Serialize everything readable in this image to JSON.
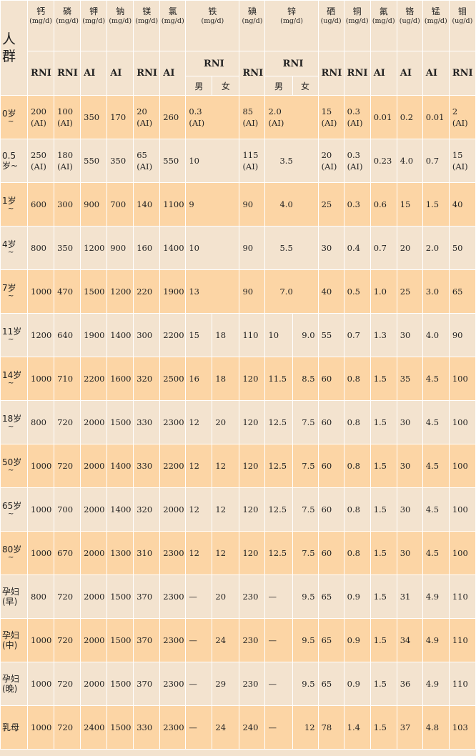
{
  "header": {
    "crowd_label": "人\n群",
    "nutrients": [
      {
        "name": "钙",
        "unit": "(mg/d)",
        "type": "RNI"
      },
      {
        "name": "磷",
        "unit": "(mg/d)",
        "type": "RNI"
      },
      {
        "name": "钾",
        "unit": "(mg/d)",
        "type": "AI"
      },
      {
        "name": "钠",
        "unit": "(mg/d)",
        "type": "AI"
      },
      {
        "name": "镁",
        "unit": "(mg/d)",
        "type": "RNI"
      },
      {
        "name": "氯",
        "unit": "(mg/d)",
        "type": "AI"
      },
      {
        "name": "铁",
        "unit": "(mg/d)",
        "type": "RNI"
      },
      {
        "name": "碘",
        "unit": "(ng/d)",
        "type": "RNI"
      },
      {
        "name": "锌",
        "unit": "(mg/d)",
        "type": "RNI"
      },
      {
        "name": "硒",
        "unit": "(ug/d)",
        "type": "RNI"
      },
      {
        "name": "铜",
        "unit": "(mg/d)",
        "type": "RNI"
      },
      {
        "name": "氟",
        "unit": "(mg/d)",
        "type": "AI"
      },
      {
        "name": "铬",
        "unit": "(ug/d)",
        "type": "AI"
      },
      {
        "name": "锰",
        "unit": "(mg/d)",
        "type": "AI"
      },
      {
        "name": "钼",
        "unit": "(ug/d)",
        "type": "RNI"
      }
    ],
    "male": "男",
    "female": "女"
  },
  "rows": [
    {
      "group": "0岁",
      "tilde": "~",
      "ca": "200\n(AI)",
      "p": "100\n(AI)",
      "k": "350",
      "na": "170",
      "mg": "20\n(AI)",
      "cl": "260",
      "fe": "0.3\n(AI)",
      "i": "85\n(AI)",
      "zn": "2.0\n(AI)",
      "se": "15\n(AI)",
      "cu": "0.3\n(AI)",
      "f": "0.01",
      "cr": "0.2",
      "mn": "0.01",
      "mo": "2\n(AI)"
    },
    {
      "group": "0.5\n岁~",
      "tilde": "",
      "ca": "250\n(AI)",
      "p": "180\n(AI)",
      "k": "550",
      "na": "350",
      "mg": "65\n(AI)",
      "cl": "550",
      "fe": "10",
      "i": "115\n(AI)",
      "zn": "3.5",
      "se": "20\n(AI)",
      "cu": "0.3\n(AI)",
      "f": "0.23",
      "cr": "4.0",
      "mn": "0.7",
      "mo": "15\n(AI)"
    },
    {
      "group": "1岁",
      "tilde": "~",
      "ca": "600",
      "p": "300",
      "k": "900",
      "na": "700",
      "mg": "140",
      "cl": "1100",
      "fe": "9",
      "i": "90",
      "zn": "4.0",
      "se": "25",
      "cu": "0.3",
      "f": "0.6",
      "cr": "15",
      "mn": "1.5",
      "mo": "40"
    },
    {
      "group": "4岁",
      "tilde": "~",
      "ca": "800",
      "p": "350",
      "k": "1200",
      "na": "900",
      "mg": "160",
      "cl": "1400",
      "fe": "10",
      "i": "90",
      "zn": "5.5",
      "se": "30",
      "cu": "0.4",
      "f": "0.7",
      "cr": "20",
      "mn": "2.0",
      "mo": "50"
    },
    {
      "group": "7岁",
      "tilde": "~",
      "ca": "1000",
      "p": "470",
      "k": "1500",
      "na": "1200",
      "mg": "220",
      "cl": "1900",
      "fe": "13",
      "i": "90",
      "zn": "7.0",
      "se": "40",
      "cu": "0.5",
      "f": "1.0",
      "cr": "25",
      "mn": "3.0",
      "mo": "65"
    },
    {
      "group": "11岁",
      "tilde": "~",
      "ca": "1200",
      "p": "640",
      "k": "1900",
      "na": "1400",
      "mg": "300",
      "cl": "2200",
      "fe_m": "15",
      "fe_f": "18",
      "i": "110",
      "zn_m": "10",
      "zn_f": "9.0",
      "se": "55",
      "cu": "0.7",
      "f": "1.3",
      "cr": "30",
      "mn": "4.0",
      "mo": "90"
    },
    {
      "group": "14岁",
      "tilde": "~",
      "ca": "1000",
      "p": "710",
      "k": "2200",
      "na": "1600",
      "mg": "320",
      "cl": "2500",
      "fe_m": "16",
      "fe_f": "18",
      "i": "120",
      "zn_m": "11.5",
      "zn_f": "8.5",
      "se": "60",
      "cu": "0.8",
      "f": "1.5",
      "cr": "35",
      "mn": "4.5",
      "mo": "100"
    },
    {
      "group": "18岁",
      "tilde": "~",
      "ca": "800",
      "p": "720",
      "k": "2000",
      "na": "1500",
      "mg": "330",
      "cl": "2300",
      "fe_m": "12",
      "fe_f": "20",
      "i": "120",
      "zn_m": "12.5",
      "zn_f": "7.5",
      "se": "60",
      "cu": "0.8",
      "f": "1.5",
      "cr": "30",
      "mn": "4.5",
      "mo": "100"
    },
    {
      "group": "50岁",
      "tilde": "~",
      "ca": "1000",
      "p": "720",
      "k": "2000",
      "na": "1400",
      "mg": "330",
      "cl": "2200",
      "fe_m": "12",
      "fe_f": "12",
      "i": "120",
      "zn_m": "12.5",
      "zn_f": "7.5",
      "se": "60",
      "cu": "0.8",
      "f": "1.5",
      "cr": "30",
      "mn": "4.5",
      "mo": "100"
    },
    {
      "group": "65岁",
      "tilde": "~",
      "ca": "1000",
      "p": "700",
      "k": "2000",
      "na": "1400",
      "mg": "320",
      "cl": "2000",
      "fe_m": "12",
      "fe_f": "12",
      "i": "120",
      "zn_m": "12.5",
      "zn_f": "7.5",
      "se": "60",
      "cu": "0.8",
      "f": "1.5",
      "cr": "30",
      "mn": "4.5",
      "mo": "100"
    },
    {
      "group": "80岁",
      "tilde": "~",
      "ca": "1000",
      "p": "670",
      "k": "2000",
      "na": "1300",
      "mg": "310",
      "cl": "2300",
      "fe_m": "12",
      "fe_f": "12",
      "i": "120",
      "zn_m": "12.5",
      "zn_f": "7.5",
      "se": "60",
      "cu": "0.8",
      "f": "1.5",
      "cr": "30",
      "mn": "4.5",
      "mo": "100"
    },
    {
      "group": "孕妇\n(早)",
      "tilde": "",
      "ca": "800",
      "p": "720",
      "k": "2000",
      "na": "1500",
      "mg": "370",
      "cl": "2300",
      "fe_m": "—",
      "fe_f": "20",
      "i": "230",
      "zn_m": "—",
      "zn_f": "9.5",
      "se": "65",
      "cu": "0.9",
      "f": "1.5",
      "cr": "31",
      "mn": "4.9",
      "mo": "110"
    },
    {
      "group": "孕妇\n(中)",
      "tilde": "",
      "ca": "1000",
      "p": "720",
      "k": "2000",
      "na": "1500",
      "mg": "370",
      "cl": "2300",
      "fe_m": "—",
      "fe_f": "24",
      "i": "230",
      "zn_m": "—",
      "zn_f": "9.5",
      "se": "65",
      "cu": "0.9",
      "f": "1.5",
      "cr": "34",
      "mn": "4.9",
      "mo": "110"
    },
    {
      "group": "孕妇\n(晚)",
      "tilde": "",
      "ca": "1000",
      "p": "720",
      "k": "2000",
      "na": "1500",
      "mg": "370",
      "cl": "2300",
      "fe_m": "—",
      "fe_f": "29",
      "i": "230",
      "zn_m": "—",
      "zn_f": "9.5",
      "se": "65",
      "cu": "0.9",
      "f": "1.5",
      "cr": "36",
      "mn": "4.9",
      "mo": "110"
    },
    {
      "group": "乳母",
      "tilde": "",
      "ca": "1000",
      "p": "720",
      "k": "2400",
      "na": "1500",
      "mg": "330",
      "cl": "2300",
      "fe_m": "—",
      "fe_f": "24",
      "i": "240",
      "zn_m": "—",
      "zn_f": "12",
      "se": "78",
      "cu": "1.4",
      "f": "1.5",
      "cr": "37",
      "mn": "4.8",
      "mo": "103"
    }
  ],
  "colors": {
    "band_orange": "#fcd5a5",
    "band_light": "#f3e3cf",
    "grid": "#ffffff"
  }
}
